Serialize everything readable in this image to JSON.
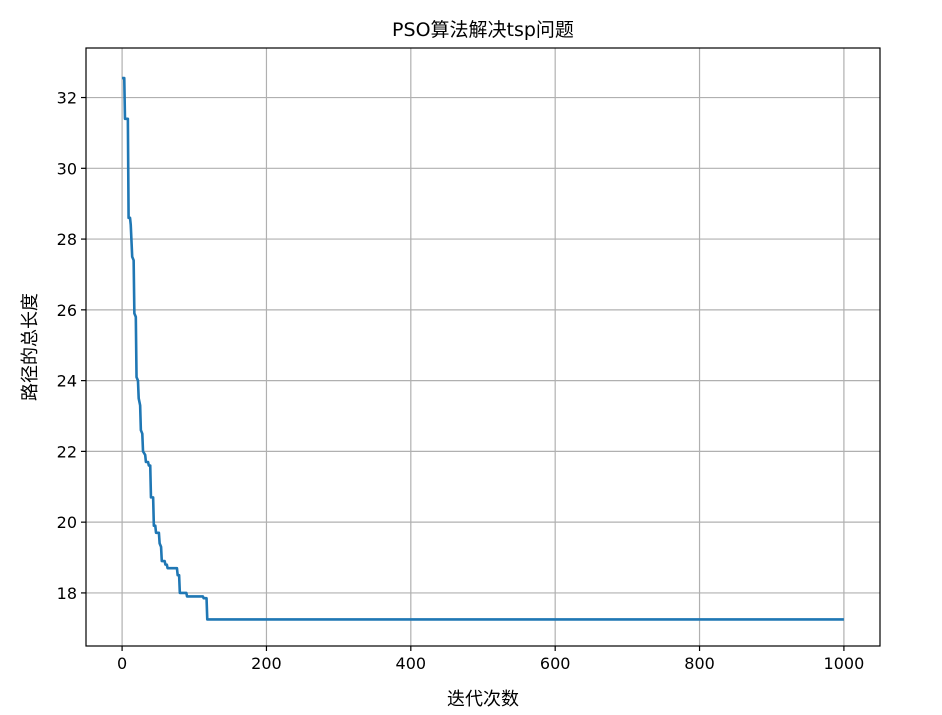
{
  "chart_data": {
    "type": "line",
    "title": "PSO算法解决tsp问题",
    "xlabel": "迭代次数",
    "ylabel": "路径的总长度",
    "xlim": [
      -50,
      1050
    ],
    "ylim": [
      16.5,
      33.4
    ],
    "x_ticks": [
      0,
      200,
      400,
      600,
      800,
      1000
    ],
    "y_ticks": [
      18,
      20,
      22,
      24,
      26,
      28,
      30,
      32
    ],
    "grid": true,
    "line_color": "#1f77b4",
    "series": [
      {
        "points": [
          [
            0,
            32.55
          ],
          [
            3,
            32.55
          ],
          [
            4,
            31.4
          ],
          [
            8,
            31.4
          ],
          [
            9,
            28.6
          ],
          [
            11,
            28.6
          ],
          [
            12,
            28.4
          ],
          [
            14,
            27.5
          ],
          [
            16,
            27.4
          ],
          [
            17,
            25.9
          ],
          [
            19,
            25.8
          ],
          [
            20,
            24.1
          ],
          [
            22,
            24.0
          ],
          [
            23,
            23.5
          ],
          [
            25,
            23.3
          ],
          [
            26,
            22.6
          ],
          [
            28,
            22.5
          ],
          [
            29,
            22.0
          ],
          [
            32,
            21.9
          ],
          [
            33,
            21.7
          ],
          [
            36,
            21.7
          ],
          [
            37,
            21.6
          ],
          [
            39,
            21.6
          ],
          [
            40,
            20.7
          ],
          [
            43,
            20.7
          ],
          [
            44,
            19.9
          ],
          [
            46,
            19.9
          ],
          [
            47,
            19.7
          ],
          [
            51,
            19.7
          ],
          [
            52,
            19.4
          ],
          [
            54,
            19.3
          ],
          [
            55,
            18.9
          ],
          [
            59,
            18.9
          ],
          [
            60,
            18.8
          ],
          [
            62,
            18.8
          ],
          [
            63,
            18.7
          ],
          [
            76,
            18.7
          ],
          [
            77,
            18.5
          ],
          [
            79,
            18.5
          ],
          [
            80,
            18.0
          ],
          [
            89,
            18.0
          ],
          [
            90,
            17.9
          ],
          [
            112,
            17.9
          ],
          [
            113,
            17.85
          ],
          [
            117,
            17.85
          ],
          [
            118,
            17.25
          ],
          [
            1000,
            17.25
          ]
        ]
      }
    ]
  }
}
